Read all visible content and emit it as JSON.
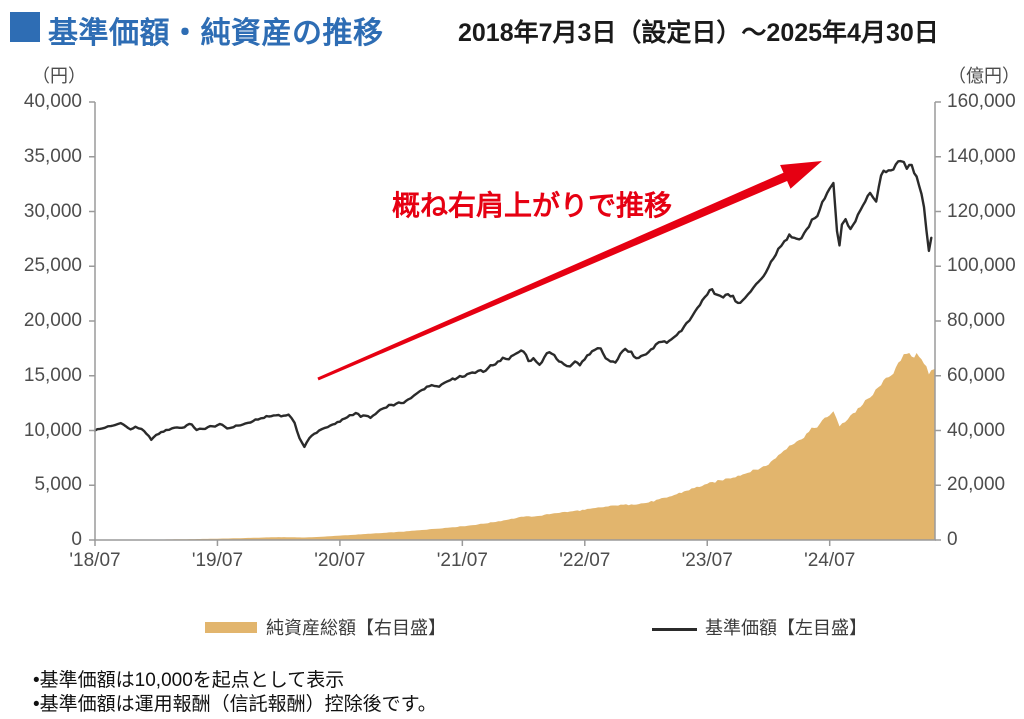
{
  "header": {
    "title": "基準価額・純資産の推移",
    "date_range": "2018年7月3日（設定日）～2025年4月30日"
  },
  "annotation": {
    "text": "概ね右肩上がりで推移"
  },
  "legend": [
    {
      "label": "純資産総額【右目盛】",
      "swatch": "area-swatch"
    },
    {
      "label": "基準価額【左目盛】",
      "swatch": "line-swatch"
    }
  ],
  "notes": [
    "•基準価額は10,000を起点として表示",
    "•基準価額は運用報酬（信託報酬）控除後です。"
  ],
  "colors": {
    "title_blue": "#2e6db4",
    "area_tan": "#e2b56d",
    "line_dark": "#2b2b2b",
    "arrow_red": "#e60012",
    "axis_line": "#9a9a9a",
    "tick_text": "#4d4d4d"
  },
  "chart_data": {
    "type": "area+line",
    "title": "基準価額・純資産の推移",
    "period": "2018/07/03 - 2025/04/30",
    "x_range": [
      2018.5,
      2025.36
    ],
    "grid": false,
    "legend_position": "bottom",
    "left_axis": {
      "unit": "（円）",
      "min": 0,
      "max": 40000,
      "tick_step": 5000,
      "tick_values": [
        40000,
        35000,
        30000,
        25000,
        20000,
        15000,
        10000,
        5000,
        0
      ],
      "tick_labels": [
        "40,000",
        "35,000",
        "30,000",
        "25,000",
        "20,000",
        "15,000",
        "10,000",
        "5,000",
        "0"
      ]
    },
    "right_axis": {
      "unit": "（億円）",
      "min": 0,
      "max": 160000,
      "tick_step": 20000,
      "tick_values": [
        160000,
        140000,
        120000,
        100000,
        80000,
        60000,
        40000,
        20000,
        0
      ],
      "tick_labels": [
        "160,000",
        "140,000",
        "120,000",
        "100,000",
        "80,000",
        "60,000",
        "40,000",
        "20,000",
        "0"
      ]
    },
    "x_axis": {
      "ticks": [
        {
          "t": 2018.5,
          "label": "'18/07"
        },
        {
          "t": 2019.5,
          "label": "'19/07"
        },
        {
          "t": 2020.5,
          "label": "'20/07"
        },
        {
          "t": 2021.5,
          "label": "'21/07"
        },
        {
          "t": 2022.5,
          "label": "'22/07"
        },
        {
          "t": 2023.5,
          "label": "'23/07"
        },
        {
          "t": 2024.5,
          "label": "'24/07"
        }
      ]
    },
    "series": [
      {
        "name": "純資産総額【右目盛】",
        "axis": "right",
        "style": "area",
        "color": "#e2b56d",
        "points": [
          [
            2018.5,
            20
          ],
          [
            2018.63,
            50
          ],
          [
            2018.75,
            90
          ],
          [
            2018.88,
            130
          ],
          [
            2019.0,
            170
          ],
          [
            2019.13,
            230
          ],
          [
            2019.25,
            300
          ],
          [
            2019.38,
            390
          ],
          [
            2019.5,
            480
          ],
          [
            2019.63,
            610
          ],
          [
            2019.75,
            750
          ],
          [
            2019.88,
            900
          ],
          [
            2020.0,
            1050
          ],
          [
            2020.13,
            1000
          ],
          [
            2020.21,
            900
          ],
          [
            2020.33,
            1150
          ],
          [
            2020.5,
            1600
          ],
          [
            2020.63,
            1950
          ],
          [
            2020.75,
            2300
          ],
          [
            2020.88,
            2650
          ],
          [
            2021.0,
            3000
          ],
          [
            2021.13,
            3500
          ],
          [
            2021.25,
            4000
          ],
          [
            2021.38,
            4500
          ],
          [
            2021.5,
            5000
          ],
          [
            2021.63,
            5700
          ],
          [
            2021.75,
            6500
          ],
          [
            2021.88,
            7500
          ],
          [
            2022.0,
            8500
          ],
          [
            2022.13,
            8800
          ],
          [
            2022.25,
            9800
          ],
          [
            2022.38,
            10400
          ],
          [
            2022.5,
            11000
          ],
          [
            2022.63,
            11900
          ],
          [
            2022.75,
            12600
          ],
          [
            2022.88,
            13000
          ],
          [
            2023.0,
            13500
          ],
          [
            2023.17,
            15500
          ],
          [
            2023.33,
            18000
          ],
          [
            2023.5,
            20500
          ],
          [
            2023.67,
            22500
          ],
          [
            2023.83,
            24500
          ],
          [
            2024.0,
            27500
          ],
          [
            2024.08,
            31000
          ],
          [
            2024.17,
            34500
          ],
          [
            2024.25,
            36500
          ],
          [
            2024.33,
            39500
          ],
          [
            2024.42,
            42500
          ],
          [
            2024.5,
            45500
          ],
          [
            2024.53,
            47000
          ],
          [
            2024.58,
            41500
          ],
          [
            2024.67,
            45500
          ],
          [
            2024.75,
            48500
          ],
          [
            2024.83,
            52000
          ],
          [
            2024.92,
            56500
          ],
          [
            2025.0,
            60000
          ],
          [
            2025.04,
            63000
          ],
          [
            2025.08,
            65500
          ],
          [
            2025.13,
            68000
          ],
          [
            2025.17,
            67000
          ],
          [
            2025.21,
            68300
          ],
          [
            2025.25,
            66000
          ],
          [
            2025.29,
            63500
          ],
          [
            2025.31,
            60500
          ],
          [
            2025.33,
            62000
          ],
          [
            2025.36,
            62500
          ]
        ]
      },
      {
        "name": "基準価額【左目盛】",
        "axis": "left",
        "style": "line",
        "color": "#2b2b2b",
        "points": [
          [
            2018.5,
            10000
          ],
          [
            2018.54,
            10150
          ],
          [
            2018.58,
            10250
          ],
          [
            2018.63,
            10400
          ],
          [
            2018.67,
            10520
          ],
          [
            2018.71,
            10680
          ],
          [
            2018.75,
            10400
          ],
          [
            2018.79,
            10100
          ],
          [
            2018.83,
            10350
          ],
          [
            2018.88,
            10150
          ],
          [
            2018.92,
            9700
          ],
          [
            2018.96,
            9150
          ],
          [
            2019.0,
            9600
          ],
          [
            2019.04,
            9850
          ],
          [
            2019.08,
            10050
          ],
          [
            2019.13,
            10200
          ],
          [
            2019.17,
            10280
          ],
          [
            2019.21,
            10250
          ],
          [
            2019.25,
            10480
          ],
          [
            2019.29,
            10560
          ],
          [
            2019.33,
            10050
          ],
          [
            2019.38,
            10150
          ],
          [
            2019.42,
            10300
          ],
          [
            2019.46,
            10380
          ],
          [
            2019.5,
            10480
          ],
          [
            2019.54,
            10520
          ],
          [
            2019.58,
            10180
          ],
          [
            2019.63,
            10300
          ],
          [
            2019.67,
            10450
          ],
          [
            2019.71,
            10560
          ],
          [
            2019.75,
            10700
          ],
          [
            2019.79,
            10850
          ],
          [
            2019.83,
            11000
          ],
          [
            2019.88,
            11150
          ],
          [
            2019.92,
            11280
          ],
          [
            2019.96,
            11380
          ],
          [
            2020.0,
            11420
          ],
          [
            2020.04,
            11350
          ],
          [
            2020.08,
            11450
          ],
          [
            2020.13,
            10700
          ],
          [
            2020.17,
            9300
          ],
          [
            2020.21,
            8500
          ],
          [
            2020.25,
            9300
          ],
          [
            2020.29,
            9700
          ],
          [
            2020.33,
            10000
          ],
          [
            2020.38,
            10250
          ],
          [
            2020.42,
            10450
          ],
          [
            2020.46,
            10600
          ],
          [
            2020.5,
            10800
          ],
          [
            2020.54,
            11100
          ],
          [
            2020.58,
            11400
          ],
          [
            2020.63,
            11600
          ],
          [
            2020.67,
            11250
          ],
          [
            2020.71,
            11350
          ],
          [
            2020.75,
            11150
          ],
          [
            2020.79,
            11500
          ],
          [
            2020.83,
            11900
          ],
          [
            2020.88,
            12100
          ],
          [
            2020.92,
            12350
          ],
          [
            2020.96,
            12450
          ],
          [
            2021.0,
            12500
          ],
          [
            2021.04,
            12700
          ],
          [
            2021.08,
            12950
          ],
          [
            2021.13,
            13400
          ],
          [
            2021.17,
            13700
          ],
          [
            2021.21,
            14000
          ],
          [
            2021.25,
            14150
          ],
          [
            2021.29,
            14050
          ],
          [
            2021.33,
            14200
          ],
          [
            2021.38,
            14500
          ],
          [
            2021.42,
            14750
          ],
          [
            2021.46,
            14800
          ],
          [
            2021.5,
            14900
          ],
          [
            2021.54,
            15150
          ],
          [
            2021.58,
            15300
          ],
          [
            2021.63,
            15450
          ],
          [
            2021.67,
            15350
          ],
          [
            2021.71,
            15700
          ],
          [
            2021.75,
            15950
          ],
          [
            2021.79,
            16300
          ],
          [
            2021.83,
            16650
          ],
          [
            2021.88,
            16500
          ],
          [
            2021.92,
            16900
          ],
          [
            2021.96,
            17150
          ],
          [
            2022.0,
            17200
          ],
          [
            2022.04,
            16350
          ],
          [
            2022.08,
            16600
          ],
          [
            2022.13,
            16000
          ],
          [
            2022.17,
            16700
          ],
          [
            2022.21,
            17150
          ],
          [
            2022.25,
            16900
          ],
          [
            2022.29,
            16300
          ],
          [
            2022.33,
            16050
          ],
          [
            2022.38,
            15850
          ],
          [
            2022.42,
            16300
          ],
          [
            2022.46,
            15950
          ],
          [
            2022.5,
            16500
          ],
          [
            2022.54,
            16950
          ],
          [
            2022.58,
            17350
          ],
          [
            2022.63,
            17500
          ],
          [
            2022.67,
            16600
          ],
          [
            2022.71,
            16300
          ],
          [
            2022.75,
            16200
          ],
          [
            2022.79,
            17000
          ],
          [
            2022.83,
            17450
          ],
          [
            2022.88,
            17200
          ],
          [
            2022.92,
            16600
          ],
          [
            2022.96,
            16800
          ],
          [
            2023.0,
            16950
          ],
          [
            2023.04,
            17400
          ],
          [
            2023.08,
            17850
          ],
          [
            2023.13,
            18100
          ],
          [
            2023.17,
            18000
          ],
          [
            2023.21,
            18350
          ],
          [
            2023.25,
            18700
          ],
          [
            2023.29,
            19100
          ],
          [
            2023.33,
            19800
          ],
          [
            2023.38,
            20500
          ],
          [
            2023.42,
            21200
          ],
          [
            2023.46,
            21900
          ],
          [
            2023.5,
            22400
          ],
          [
            2023.54,
            22900
          ],
          [
            2023.58,
            22400
          ],
          [
            2023.63,
            22150
          ],
          [
            2023.67,
            22450
          ],
          [
            2023.71,
            22300
          ],
          [
            2023.75,
            21650
          ],
          [
            2023.79,
            21900
          ],
          [
            2023.83,
            22400
          ],
          [
            2023.88,
            23100
          ],
          [
            2023.92,
            23600
          ],
          [
            2023.96,
            24100
          ],
          [
            2024.0,
            24900
          ],
          [
            2024.04,
            25700
          ],
          [
            2024.08,
            26600
          ],
          [
            2024.13,
            27300
          ],
          [
            2024.17,
            27900
          ],
          [
            2024.21,
            27600
          ],
          [
            2024.25,
            27450
          ],
          [
            2024.29,
            28000
          ],
          [
            2024.33,
            28600
          ],
          [
            2024.38,
            29400
          ],
          [
            2024.42,
            30200
          ],
          [
            2024.46,
            31200
          ],
          [
            2024.5,
            32100
          ],
          [
            2024.53,
            32600
          ],
          [
            2024.56,
            28200
          ],
          [
            2024.58,
            26900
          ],
          [
            2024.6,
            28800
          ],
          [
            2024.63,
            29300
          ],
          [
            2024.67,
            28400
          ],
          [
            2024.71,
            29100
          ],
          [
            2024.75,
            30100
          ],
          [
            2024.79,
            30900
          ],
          [
            2024.83,
            31700
          ],
          [
            2024.88,
            30900
          ],
          [
            2024.92,
            33300
          ],
          [
            2024.96,
            33600
          ],
          [
            2025.0,
            33750
          ],
          [
            2025.04,
            34300
          ],
          [
            2025.08,
            34600
          ],
          [
            2025.13,
            33900
          ],
          [
            2025.17,
            34250
          ],
          [
            2025.21,
            33200
          ],
          [
            2025.25,
            31600
          ],
          [
            2025.27,
            30400
          ],
          [
            2025.29,
            28300
          ],
          [
            2025.31,
            26400
          ],
          [
            2025.33,
            27600
          ]
        ]
      }
    ]
  }
}
